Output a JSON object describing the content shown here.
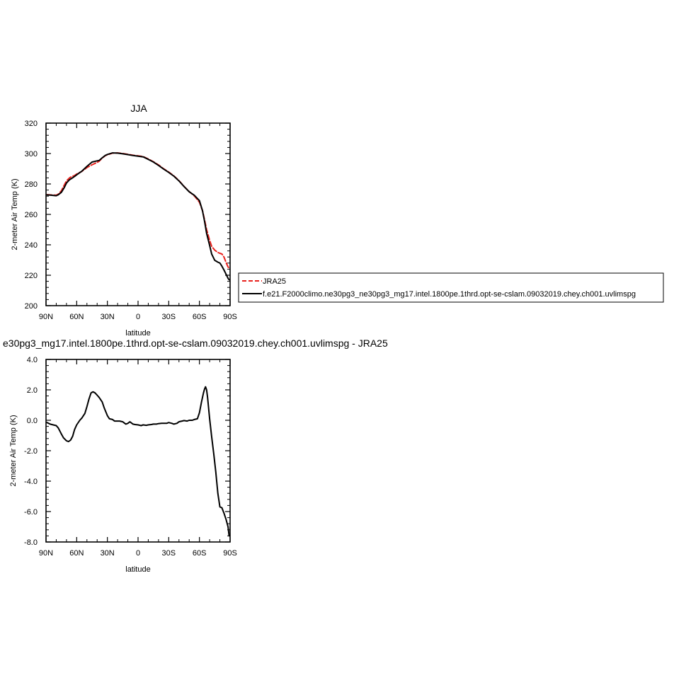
{
  "chart_data": [
    {
      "type": "line",
      "title": "JJA",
      "xlabel": "latitude",
      "ylabel": "2-meter Air Temp (K)",
      "xlim": [
        90,
        -90
      ],
      "ylim": [
        200,
        320
      ],
      "x_ticks": [
        90,
        60,
        30,
        0,
        -30,
        -60,
        -90
      ],
      "x_tick_labels": [
        "90N",
        "60N",
        "30N",
        "0",
        "30S",
        "60S",
        "90S"
      ],
      "y_ticks": [
        200,
        220,
        240,
        260,
        280,
        300,
        320
      ],
      "y_tick_labels": [
        "200",
        "220",
        "240",
        "260",
        "280",
        "300",
        "320"
      ],
      "grid": false,
      "legend_position": "right",
      "series": [
        {
          "name": "JRA25",
          "color": "#e8211d",
          "dash": "dash",
          "x": [
            89,
            85,
            80,
            78,
            75,
            72,
            70,
            67,
            65,
            62,
            60,
            55,
            50,
            45,
            40,
            38,
            35,
            32,
            30,
            25,
            20,
            15,
            10,
            5,
            0,
            -5,
            -10,
            -15,
            -20,
            -25,
            -30,
            -35,
            -40,
            -45,
            -50,
            -55,
            -60,
            -63,
            -65,
            -67,
            -70,
            -72,
            -75,
            -78,
            -80,
            -82,
            -84,
            -86,
            -88,
            -89
          ],
          "y": [
            273.0,
            272.8,
            272.6,
            273.3,
            275.5,
            279.5,
            282.0,
            284.0,
            284.8,
            285.6,
            286.5,
            288.3,
            290.8,
            292.6,
            294.2,
            295.0,
            297.0,
            298.6,
            299.2,
            300.3,
            300.4,
            300.0,
            299.5,
            298.9,
            298.5,
            298.0,
            296.4,
            294.6,
            292.5,
            290.0,
            287.8,
            285.3,
            282.2,
            278.4,
            275.0,
            272.2,
            268.0,
            262.5,
            256.5,
            250.0,
            243.0,
            239.0,
            236.5,
            235.0,
            234.4,
            234.0,
            232.0,
            228.5,
            225.5,
            224.5
          ]
        },
        {
          "name": "f.e21.F2000climo.ne30pg3_ne30pg3_mg17.intel.1800pe.1thrd.opt-se-cslam.09032019.chey.ch001.uvlimspg",
          "color": "#000000",
          "dash": "solid",
          "x": [
            89,
            85,
            80,
            78,
            75,
            72,
            70,
            67,
            65,
            62,
            60,
            55,
            50,
            45,
            40,
            38,
            35,
            32,
            30,
            25,
            20,
            15,
            10,
            5,
            0,
            -5,
            -10,
            -15,
            -20,
            -25,
            -30,
            -35,
            -40,
            -45,
            -50,
            -55,
            -60,
            -63,
            -65,
            -67,
            -70,
            -72,
            -75,
            -78,
            -80,
            -82,
            -84,
            -86,
            -88,
            -89
          ],
          "y": [
            272.8,
            272.6,
            272.3,
            272.9,
            274.5,
            277.8,
            280.6,
            282.8,
            283.6,
            285.0,
            286.0,
            288.4,
            291.6,
            294.4,
            295.2,
            295.5,
            297.2,
            298.8,
            299.4,
            300.4,
            300.3,
            299.8,
            299.3,
            298.7,
            298.3,
            297.8,
            296.2,
            294.4,
            292.2,
            289.8,
            287.6,
            285.1,
            282.0,
            278.3,
            274.9,
            272.6,
            269.0,
            262.4,
            255.5,
            247.6,
            239.6,
            233.9,
            229.8,
            228.6,
            228.0,
            226.0,
            223.5,
            220.8,
            218.0,
            217.0
          ]
        }
      ]
    },
    {
      "type": "line",
      "title": "e30pg3_mg17.intel.1800pe.1thrd.opt-se-cslam.09032019.chey.ch001.uvlimspg - JRA25",
      "xlabel": "latitude",
      "ylabel": "2-meter Air Temp (K)",
      "xlim": [
        90,
        -90
      ],
      "ylim": [
        -8.0,
        4.0
      ],
      "x_ticks": [
        90,
        60,
        30,
        0,
        -30,
        -60,
        -90
      ],
      "x_tick_labels": [
        "90N",
        "60N",
        "30N",
        "0",
        "30S",
        "60S",
        "90S"
      ],
      "y_ticks": [
        -8,
        -6,
        -4,
        -2,
        0,
        2,
        4
      ],
      "y_tick_labels": [
        "-8.0",
        "-6.0",
        "-4.0",
        "-2.0",
        "0.0",
        "2.0",
        "4.0"
      ],
      "grid": false,
      "series": [
        {
          "color": "#000000",
          "dash": "solid",
          "x": [
            89,
            86,
            83,
            80,
            78,
            75,
            73,
            70,
            68,
            66,
            64,
            62,
            60,
            57,
            55,
            52,
            50,
            48,
            46,
            44,
            42,
            40,
            38,
            35,
            33,
            30,
            28,
            25,
            23,
            20,
            18,
            15,
            12,
            10,
            8,
            5,
            3,
            0,
            -3,
            -5,
            -8,
            -10,
            -13,
            -15,
            -18,
            -20,
            -23,
            -25,
            -28,
            -30,
            -33,
            -35,
            -38,
            -40,
            -43,
            -45,
            -48,
            -50,
            -53,
            -55,
            -58,
            -60,
            -62,
            -64,
            -65,
            -66,
            -67,
            -68,
            -70,
            -72,
            -74,
            -76,
            -78,
            -80,
            -82,
            -84,
            -86,
            -88,
            -89
          ],
          "y": [
            -0.15,
            -0.25,
            -0.3,
            -0.35,
            -0.5,
            -0.9,
            -1.15,
            -1.35,
            -1.4,
            -1.3,
            -1.05,
            -0.6,
            -0.3,
            0.0,
            0.15,
            0.45,
            0.9,
            1.4,
            1.8,
            1.87,
            1.8,
            1.65,
            1.5,
            1.2,
            0.8,
            0.3,
            0.1,
            0.05,
            -0.05,
            -0.05,
            -0.05,
            -0.1,
            -0.25,
            -0.2,
            -0.1,
            -0.25,
            -0.28,
            -0.3,
            -0.35,
            -0.3,
            -0.33,
            -0.3,
            -0.28,
            -0.25,
            -0.25,
            -0.22,
            -0.2,
            -0.2,
            -0.2,
            -0.15,
            -0.2,
            -0.25,
            -0.2,
            -0.1,
            -0.05,
            -0.02,
            -0.05,
            0.0,
            0.0,
            0.05,
            0.1,
            0.5,
            1.2,
            1.8,
            2.05,
            2.2,
            2.0,
            1.5,
            0.1,
            -1.1,
            -2.2,
            -3.4,
            -4.8,
            -5.7,
            -5.75,
            -6.1,
            -6.5,
            -7.0,
            -7.6
          ]
        }
      ]
    }
  ]
}
